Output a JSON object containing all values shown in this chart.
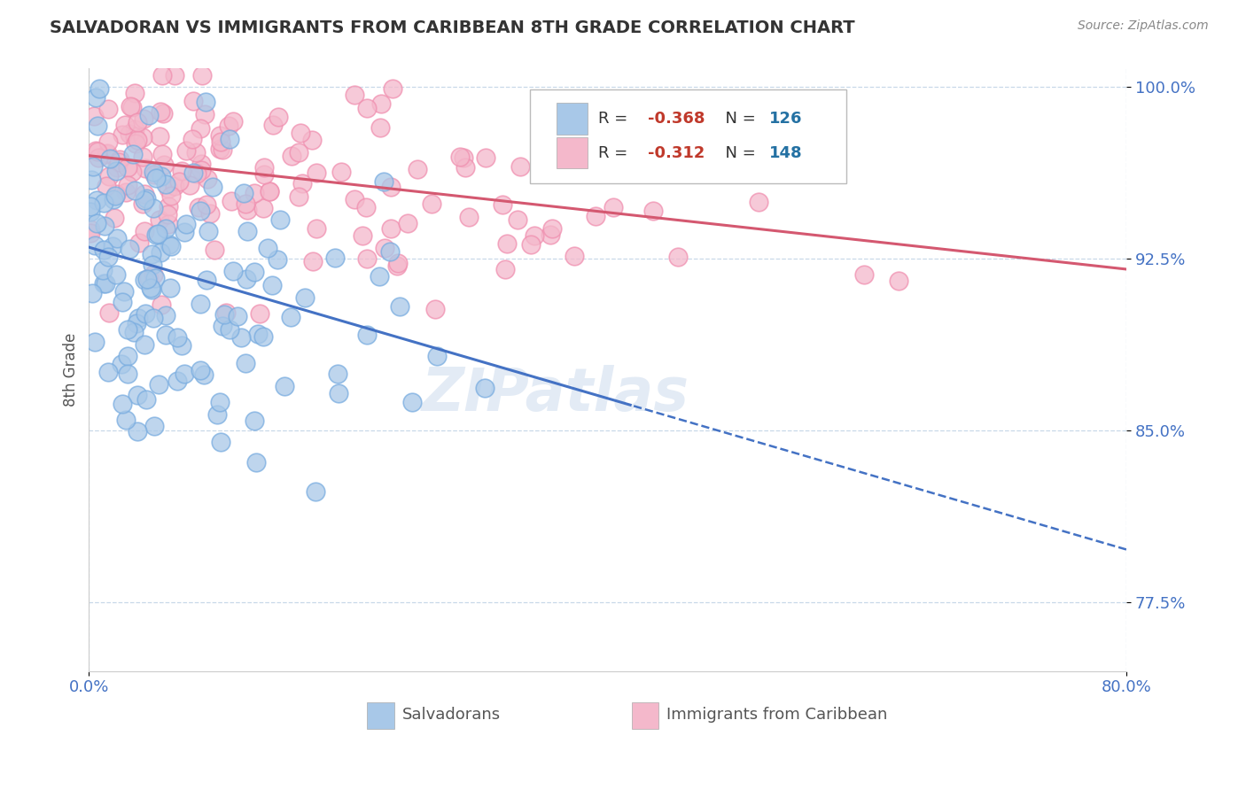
{
  "title": "SALVADORAN VS IMMIGRANTS FROM CARIBBEAN 8TH GRADE CORRELATION CHART",
  "source_text": "Source: ZipAtlas.com",
  "ylabel": "8th Grade",
  "x_min": 0.0,
  "x_max": 0.8,
  "y_min": 0.745,
  "y_max": 1.008,
  "yticks": [
    0.775,
    0.85,
    0.925,
    1.0
  ],
  "ytick_labels": [
    "77.5%",
    "85.0%",
    "92.5%",
    "100.0%"
  ],
  "blue_R": -0.368,
  "blue_N": 126,
  "pink_R": -0.312,
  "pink_N": 148,
  "blue_color": "#a8c8e8",
  "pink_color": "#f4b8cb",
  "blue_edge_color": "#7aade0",
  "pink_edge_color": "#f090b0",
  "blue_line_color": "#4472c4",
  "pink_line_color": "#d45870",
  "legend_label_blue": "Salvadorans",
  "legend_label_pink": "Immigrants from Caribbean",
  "watermark": "ZIPatlas",
  "background_color": "#ffffff",
  "blue_trend_intercept": 0.93,
  "blue_trend_slope": -0.165,
  "pink_trend_intercept": 0.97,
  "pink_trend_slope": -0.062,
  "blue_solid_cutoff": 0.42,
  "r_color": "#c0392b",
  "n_color": "#2471a3"
}
